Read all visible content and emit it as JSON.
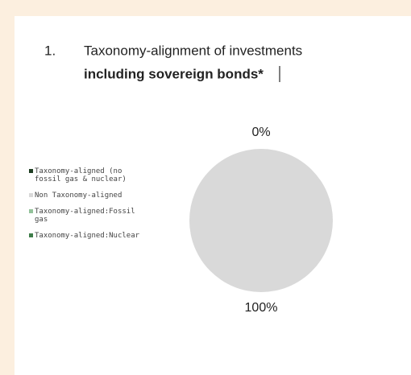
{
  "chart_data": {
    "type": "pie",
    "title_number": "1.",
    "title": "Taxonomy-alignment of investments",
    "subtitle": "including sovereign bonds*",
    "categories": [
      "Taxonomy-aligned (no fossil gas & nuclear)",
      "Non Taxonomy-aligned",
      "Taxonomy-aligned:Fossil gas",
      "Taxonomy-aligned:Nuclear"
    ],
    "values": [
      0,
      100,
      0,
      0
    ],
    "value_labels": [
      "0%",
      "100%",
      null,
      null
    ],
    "colors": [
      "#1e3d22",
      "#d9d9d9",
      "#93c29a",
      "#3f7d4a"
    ],
    "legend": "left"
  }
}
